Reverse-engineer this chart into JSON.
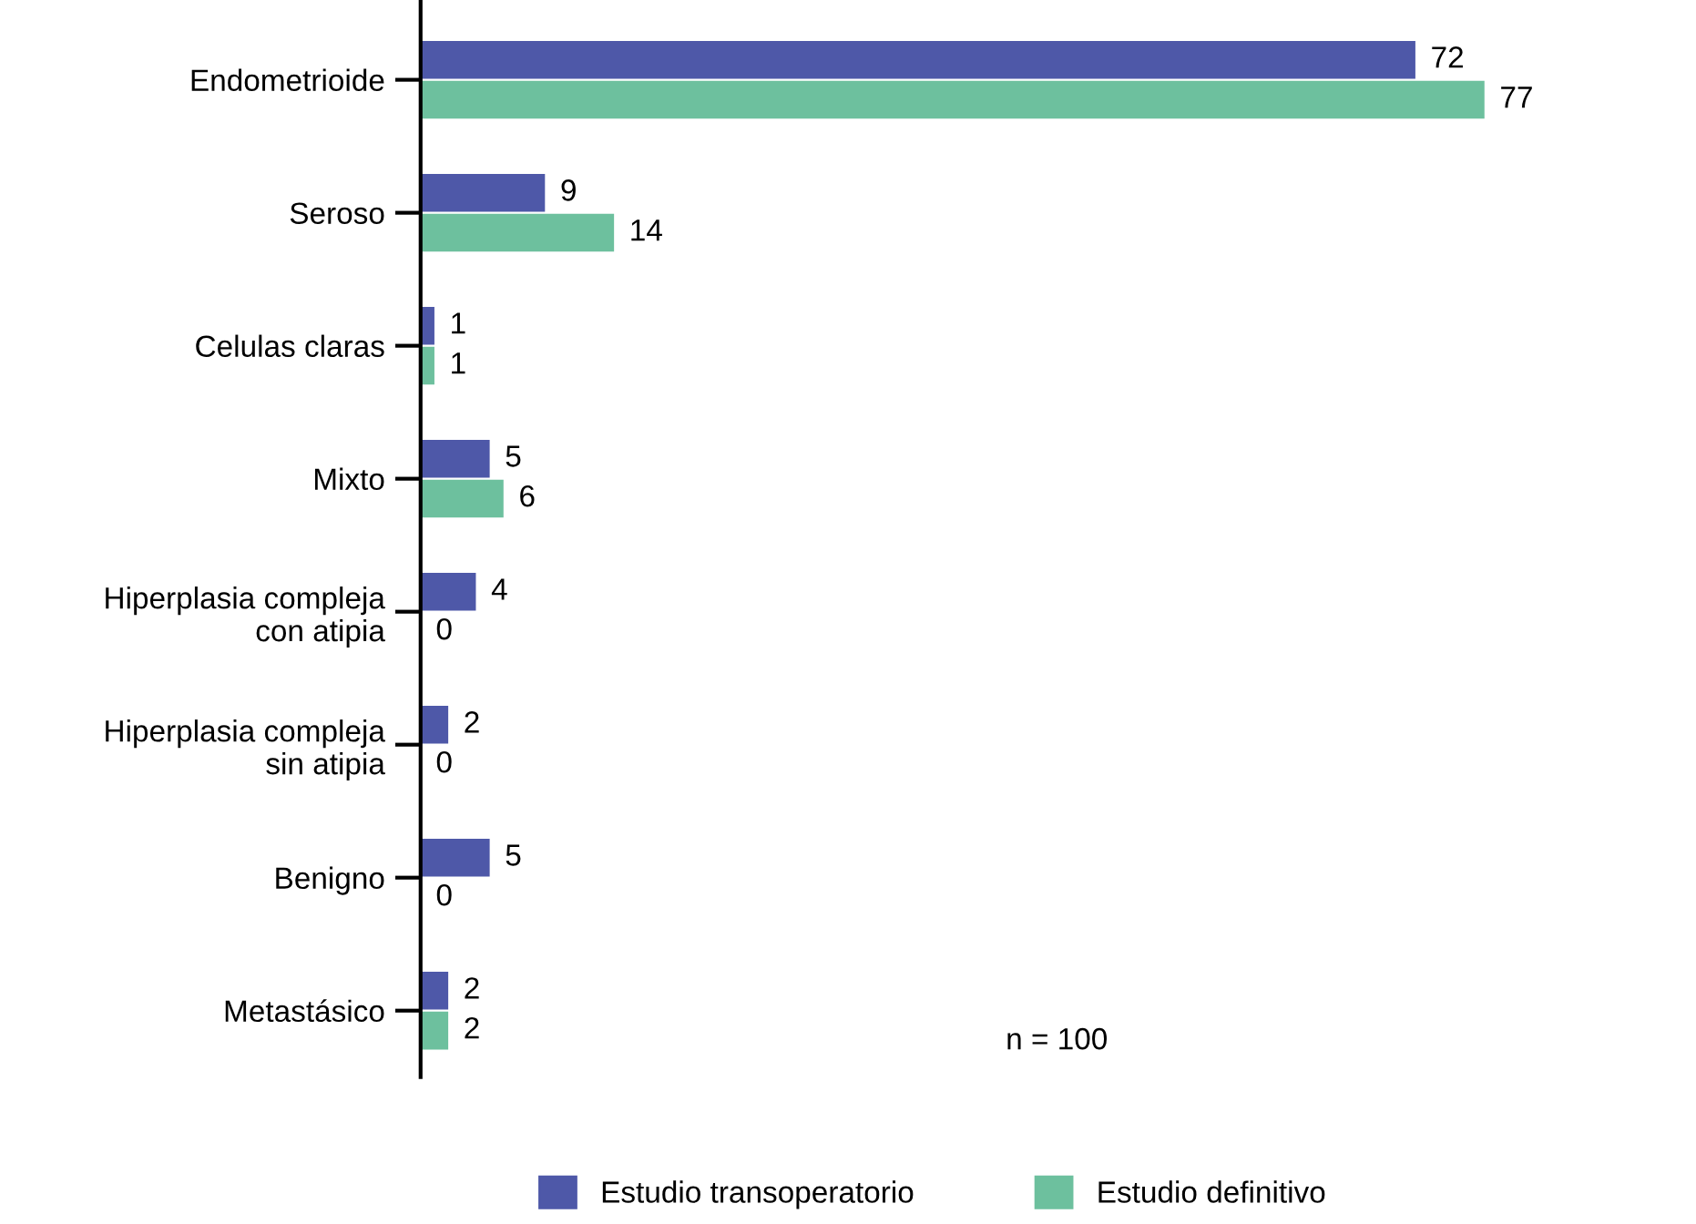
{
  "chart_data": {
    "type": "bar",
    "orientation": "horizontal",
    "categories": [
      "Endometrioide",
      "Seroso",
      "Celulas claras",
      "Mixto",
      "Hiperplasia compleja\ncon atipia",
      "Hiperplasia compleja\nsin atipia",
      "Benigno",
      "Metastásico"
    ],
    "series": [
      {
        "name": "Estudio transoperatorio",
        "color": "#4e58a8",
        "values": [
          72,
          9,
          1,
          5,
          4,
          2,
          5,
          2
        ]
      },
      {
        "name": "Estudio definitivo",
        "color": "#6dc09e",
        "values": [
          77,
          14,
          1,
          6,
          0,
          0,
          0,
          2
        ]
      }
    ],
    "tick_labels": "y",
    "data_labels": true,
    "legend": "bottom",
    "grid": false,
    "annotations": [
      "n = 100"
    ]
  }
}
